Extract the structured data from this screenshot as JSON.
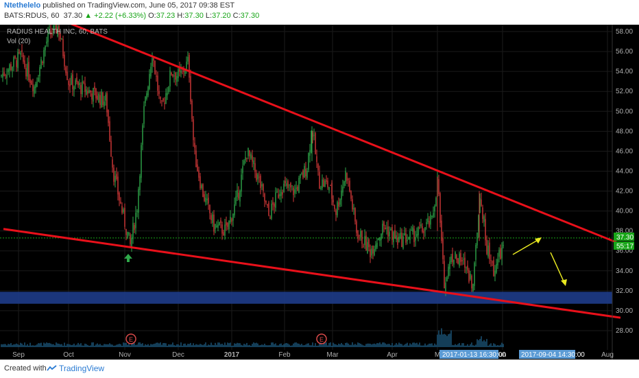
{
  "header": {
    "author": "Ntethelelo",
    "published_text": "published on TradingView.com, June 05, 2017 09:38 EST",
    "symbol": "BATS:RDUS, 60",
    "last": "37.30",
    "arrow": "▲",
    "change": "+2.22 (+6.33%)",
    "o_label": "O:",
    "o_val": "37.23",
    "h_label": "H:",
    "h_val": "37.30",
    "l_label": "L:",
    "l_val": "37.20",
    "c_label": "C:",
    "c_val": "37.30"
  },
  "chart_labels": {
    "instrument": "RADIUS HEALTH INC, 60, BATS",
    "volume": "Vol (20)",
    "price_tag": "37.30",
    "timer_tag": "55:17",
    "crosshair_time_1": "2017-01-13 16:30:00",
    "crosshair_time_2": "2017-09-04 14:30:00",
    "earnings_marker": "E"
  },
  "footer": {
    "created_with": "Created with",
    "brand": "TradingView"
  },
  "colors": {
    "background": "#000000",
    "trendline": "#e8101a",
    "candle_up": "#2fa84a",
    "candle_down": "#d93a3a",
    "zone": "#1e3c8a",
    "arrow": "#e8e820",
    "price_line": "#18a518"
  },
  "chart_data": {
    "type": "candlestick",
    "title": "RADIUS HEALTH INC, 60, BATS",
    "x_ticks": [
      "Sep",
      "Oct",
      "Nov",
      "Dec",
      "2017",
      "Feb",
      "Mar",
      "Apr",
      "M",
      "un",
      "Aug"
    ],
    "y_ticks": [
      "58.00",
      "56.00",
      "54.00",
      "52.00",
      "50.00",
      "48.00",
      "46.00",
      "44.00",
      "42.00",
      "40.00",
      "38.00",
      "36.00",
      "34.00",
      "32.00",
      "30.00",
      "28.00"
    ],
    "ylim": [
      26.5,
      59.5
    ],
    "price_path": [
      [
        0,
        53.5
      ],
      [
        30,
        55.5
      ],
      [
        50,
        52.5
      ],
      [
        70,
        57.5
      ],
      [
        85,
        58.5
      ],
      [
        100,
        53
      ],
      [
        130,
        52
      ],
      [
        155,
        51
      ],
      [
        165,
        44
      ],
      [
        178,
        40
      ],
      [
        190,
        36.5
      ],
      [
        200,
        40.5
      ],
      [
        210,
        50
      ],
      [
        222,
        56
      ],
      [
        235,
        50
      ],
      [
        250,
        54
      ],
      [
        262,
        53.5
      ],
      [
        275,
        55
      ],
      [
        283,
        46
      ],
      [
        295,
        42
      ],
      [
        312,
        38.5
      ],
      [
        330,
        38
      ],
      [
        345,
        41
      ],
      [
        360,
        46
      ],
      [
        378,
        43
      ],
      [
        392,
        39.5
      ],
      [
        410,
        42.5
      ],
      [
        430,
        42
      ],
      [
        448,
        44.5
      ],
      [
        455,
        48.5
      ],
      [
        465,
        43
      ],
      [
        480,
        42.5
      ],
      [
        490,
        40
      ],
      [
        505,
        44
      ],
      [
        520,
        38
      ],
      [
        540,
        36
      ],
      [
        560,
        38.5
      ],
      [
        580,
        37
      ],
      [
        600,
        37.5
      ],
      [
        615,
        38
      ],
      [
        630,
        39
      ],
      [
        638,
        43
      ],
      [
        648,
        33
      ],
      [
        660,
        35.5
      ],
      [
        680,
        34.5
      ],
      [
        690,
        32.5
      ],
      [
        700,
        42
      ],
      [
        710,
        36.5
      ],
      [
        720,
        34
      ],
      [
        735,
        36.5
      ]
    ],
    "annotations": {
      "upper_trendline": [
        [
          88,
          59.2
        ],
        [
          905,
          36.7
        ]
      ],
      "lower_trendline": [
        [
          5,
          38.2
        ],
        [
          905,
          29.3
        ]
      ],
      "support_zone": [
        30.7,
        31.9
      ],
      "top_zone": [
        58.7,
        59.5
      ],
      "current_price": 37.3
    },
    "volume_markers": [
      "E",
      "E"
    ]
  }
}
